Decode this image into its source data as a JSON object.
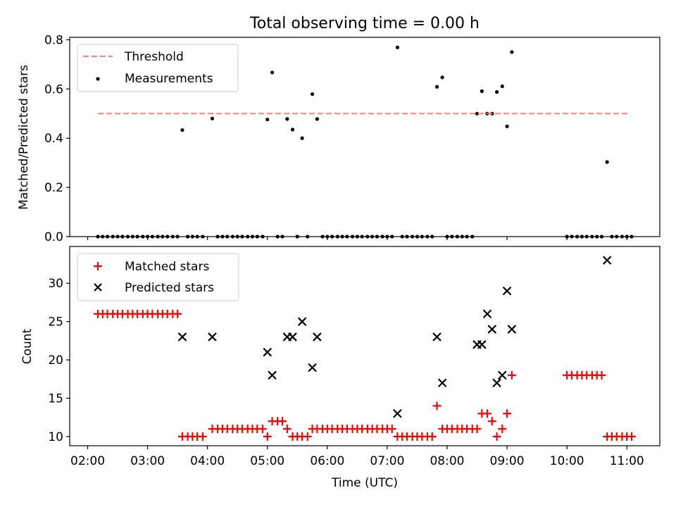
{
  "chart_data": [
    {
      "type": "scatter",
      "title": "Total observing time = 0.00 h",
      "xlabel": "",
      "ylabel": "Matched/Predicted stars",
      "ylim": [
        0,
        0.81
      ],
      "yticks": [
        0.0,
        0.2,
        0.4,
        0.6,
        0.8
      ],
      "ytick_labels": [
        "0.0",
        "0.2",
        "0.4",
        "0.6",
        "0.8"
      ],
      "xlim_hours": [
        1.7,
        11.55
      ],
      "legend_position": "top-left",
      "legend": [
        "Threshold",
        "Measurements"
      ],
      "threshold": {
        "name": "Threshold",
        "y": 0.5,
        "x_start": 2.17,
        "x_end": 11.05,
        "color": "#ff7f7f",
        "style": "dashed"
      },
      "series": [
        {
          "name": "Measurements",
          "color": "#000000",
          "marker": "dot",
          "points": [
            [
              2.17,
              0
            ],
            [
              2.25,
              0
            ],
            [
              2.33,
              0
            ],
            [
              2.42,
              0
            ],
            [
              2.5,
              0
            ],
            [
              2.58,
              0
            ],
            [
              2.67,
              0
            ],
            [
              2.75,
              0
            ],
            [
              2.83,
              0
            ],
            [
              2.92,
              0
            ],
            [
              3.0,
              0
            ],
            [
              3.08,
              0
            ],
            [
              3.17,
              0
            ],
            [
              3.25,
              0
            ],
            [
              3.33,
              0
            ],
            [
              3.42,
              0
            ],
            [
              3.5,
              0
            ],
            [
              3.58,
              0.433
            ],
            [
              3.67,
              0
            ],
            [
              3.75,
              0
            ],
            [
              3.83,
              0
            ],
            [
              3.92,
              0
            ],
            [
              4.08,
              0.48
            ],
            [
              4.17,
              0
            ],
            [
              4.25,
              0
            ],
            [
              4.33,
              0
            ],
            [
              4.42,
              0
            ],
            [
              4.5,
              0
            ],
            [
              4.58,
              0
            ],
            [
              4.67,
              0
            ],
            [
              4.75,
              0
            ],
            [
              4.83,
              0
            ],
            [
              4.92,
              0
            ],
            [
              5.0,
              0.476
            ],
            [
              5.08,
              0.667
            ],
            [
              5.17,
              0
            ],
            [
              5.25,
              0
            ],
            [
              5.33,
              0.478
            ],
            [
              5.42,
              0.435
            ],
            [
              5.5,
              0
            ],
            [
              5.58,
              0.4
            ],
            [
              5.67,
              0
            ],
            [
              5.75,
              0.579
            ],
            [
              5.83,
              0.478
            ],
            [
              5.92,
              0
            ],
            [
              6.0,
              0
            ],
            [
              6.08,
              0
            ],
            [
              6.17,
              0
            ],
            [
              6.25,
              0
            ],
            [
              6.33,
              0
            ],
            [
              6.42,
              0
            ],
            [
              6.5,
              0
            ],
            [
              6.58,
              0
            ],
            [
              6.67,
              0
            ],
            [
              6.75,
              0
            ],
            [
              6.83,
              0
            ],
            [
              6.92,
              0
            ],
            [
              7.0,
              0
            ],
            [
              7.08,
              0
            ],
            [
              7.17,
              0.769
            ],
            [
              7.25,
              0
            ],
            [
              7.33,
              0
            ],
            [
              7.42,
              0
            ],
            [
              7.5,
              0
            ],
            [
              7.58,
              0
            ],
            [
              7.67,
              0
            ],
            [
              7.75,
              0
            ],
            [
              7.83,
              0.609
            ],
            [
              7.92,
              0.647
            ],
            [
              8.0,
              0
            ],
            [
              8.08,
              0
            ],
            [
              8.17,
              0
            ],
            [
              8.25,
              0
            ],
            [
              8.33,
              0
            ],
            [
              8.42,
              0
            ],
            [
              8.5,
              0.5
            ],
            [
              8.58,
              0.591
            ],
            [
              8.67,
              0.5
            ],
            [
              8.75,
              0.5
            ],
            [
              8.83,
              0.588
            ],
            [
              8.92,
              0.611
            ],
            [
              9.0,
              0.448
            ],
            [
              9.08,
              0.75
            ],
            [
              10.0,
              0
            ],
            [
              10.08,
              0
            ],
            [
              10.17,
              0
            ],
            [
              10.25,
              0
            ],
            [
              10.33,
              0
            ],
            [
              10.42,
              0
            ],
            [
              10.5,
              0
            ],
            [
              10.58,
              0
            ],
            [
              10.67,
              0.303
            ],
            [
              10.75,
              0
            ],
            [
              10.83,
              0
            ],
            [
              10.92,
              0
            ],
            [
              11.0,
              0
            ],
            [
              11.08,
              0
            ]
          ]
        }
      ]
    },
    {
      "type": "scatter",
      "title": "",
      "xlabel": "Time (UTC)",
      "ylabel": "Count",
      "ylim": [
        8.8,
        34.8
      ],
      "yticks": [
        10,
        15,
        20,
        25,
        30
      ],
      "ytick_labels": [
        "10",
        "15",
        "20",
        "25",
        "30"
      ],
      "xlim_hours": [
        1.7,
        11.55
      ],
      "xticks_hours": [
        2,
        3,
        4,
        5,
        6,
        7,
        8,
        9,
        10,
        11
      ],
      "xtick_labels": [
        "02:00",
        "03:00",
        "04:00",
        "05:00",
        "06:00",
        "07:00",
        "08:00",
        "09:00",
        "10:00",
        "11:00"
      ],
      "legend_position": "top-left",
      "legend": [
        "Matched stars",
        "Predicted stars"
      ],
      "series": [
        {
          "name": "Matched stars",
          "color": "#ff0000",
          "marker": "plus",
          "points": [
            [
              2.17,
              26
            ],
            [
              2.25,
              26
            ],
            [
              2.33,
              26
            ],
            [
              2.42,
              26
            ],
            [
              2.5,
              26
            ],
            [
              2.58,
              26
            ],
            [
              2.67,
              26
            ],
            [
              2.75,
              26
            ],
            [
              2.83,
              26
            ],
            [
              2.92,
              26
            ],
            [
              3.0,
              26
            ],
            [
              3.08,
              26
            ],
            [
              3.17,
              26
            ],
            [
              3.25,
              26
            ],
            [
              3.33,
              26
            ],
            [
              3.42,
              26
            ],
            [
              3.5,
              26
            ],
            [
              3.58,
              10
            ],
            [
              3.67,
              10
            ],
            [
              3.75,
              10
            ],
            [
              3.83,
              10
            ],
            [
              3.92,
              10
            ],
            [
              4.08,
              11
            ],
            [
              4.17,
              11
            ],
            [
              4.25,
              11
            ],
            [
              4.33,
              11
            ],
            [
              4.42,
              11
            ],
            [
              4.5,
              11
            ],
            [
              4.58,
              11
            ],
            [
              4.67,
              11
            ],
            [
              4.75,
              11
            ],
            [
              4.83,
              11
            ],
            [
              4.92,
              11
            ],
            [
              5.0,
              10
            ],
            [
              5.08,
              12
            ],
            [
              5.17,
              12
            ],
            [
              5.25,
              12
            ],
            [
              5.33,
              11
            ],
            [
              5.42,
              10
            ],
            [
              5.5,
              10
            ],
            [
              5.58,
              10
            ],
            [
              5.67,
              10
            ],
            [
              5.75,
              11
            ],
            [
              5.83,
              11
            ],
            [
              5.92,
              11
            ],
            [
              6.0,
              11
            ],
            [
              6.08,
              11
            ],
            [
              6.17,
              11
            ],
            [
              6.25,
              11
            ],
            [
              6.33,
              11
            ],
            [
              6.42,
              11
            ],
            [
              6.5,
              11
            ],
            [
              6.58,
              11
            ],
            [
              6.67,
              11
            ],
            [
              6.75,
              11
            ],
            [
              6.83,
              11
            ],
            [
              6.92,
              11
            ],
            [
              7.0,
              11
            ],
            [
              7.08,
              11
            ],
            [
              7.17,
              10
            ],
            [
              7.25,
              10
            ],
            [
              7.33,
              10
            ],
            [
              7.42,
              10
            ],
            [
              7.5,
              10
            ],
            [
              7.58,
              10
            ],
            [
              7.67,
              10
            ],
            [
              7.75,
              10
            ],
            [
              7.83,
              14
            ],
            [
              7.92,
              11
            ],
            [
              8.0,
              11
            ],
            [
              8.08,
              11
            ],
            [
              8.17,
              11
            ],
            [
              8.25,
              11
            ],
            [
              8.33,
              11
            ],
            [
              8.42,
              11
            ],
            [
              8.5,
              11
            ],
            [
              8.58,
              13
            ],
            [
              8.67,
              13
            ],
            [
              8.75,
              12
            ],
            [
              8.83,
              10
            ],
            [
              8.92,
              11
            ],
            [
              9.0,
              13
            ],
            [
              9.08,
              18
            ],
            [
              10.0,
              18
            ],
            [
              10.08,
              18
            ],
            [
              10.17,
              18
            ],
            [
              10.25,
              18
            ],
            [
              10.33,
              18
            ],
            [
              10.42,
              18
            ],
            [
              10.5,
              18
            ],
            [
              10.58,
              18
            ],
            [
              10.67,
              10
            ],
            [
              10.75,
              10
            ],
            [
              10.83,
              10
            ],
            [
              10.92,
              10
            ],
            [
              11.0,
              10
            ],
            [
              11.08,
              10
            ]
          ]
        },
        {
          "name": "Predicted stars",
          "color": "#000000",
          "marker": "x",
          "points": [
            [
              3.58,
              23
            ],
            [
              4.08,
              23
            ],
            [
              5.0,
              21
            ],
            [
              5.08,
              18
            ],
            [
              5.33,
              23
            ],
            [
              5.42,
              23
            ],
            [
              5.58,
              25
            ],
            [
              5.75,
              19
            ],
            [
              5.83,
              23
            ],
            [
              7.17,
              13
            ],
            [
              7.83,
              23
            ],
            [
              7.92,
              17
            ],
            [
              8.5,
              22
            ],
            [
              8.58,
              22
            ],
            [
              8.67,
              26
            ],
            [
              8.75,
              24
            ],
            [
              8.83,
              17
            ],
            [
              8.92,
              18
            ],
            [
              9.0,
              29
            ],
            [
              9.08,
              24
            ],
            [
              10.67,
              33
            ]
          ]
        }
      ]
    }
  ]
}
